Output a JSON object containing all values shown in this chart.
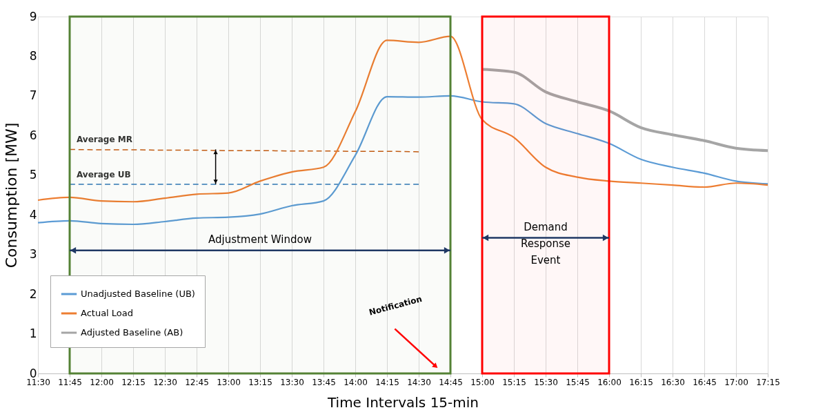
{
  "chart_data": {
    "type": "line",
    "xlabel": "Time Intervals 15-min",
    "ylabel": "Consumption [MW]",
    "x": [
      11.5,
      11.75,
      12.0,
      12.25,
      12.5,
      12.75,
      13.0,
      13.25,
      13.5,
      13.75,
      14.0,
      14.25,
      14.5,
      14.75,
      15.0,
      15.25,
      15.5,
      15.75,
      16.0,
      16.25,
      16.5,
      16.75,
      17.0,
      17.25
    ],
    "xlim": [
      11.5,
      17.25
    ],
    "xticks": [
      {
        "value": 11.5,
        "label": "11:30"
      },
      {
        "value": 11.75,
        "label": "11:45"
      },
      {
        "value": 12.0,
        "label": "12:00"
      },
      {
        "value": 12.25,
        "label": "12:15"
      },
      {
        "value": 12.5,
        "label": "12:30"
      },
      {
        "value": 12.75,
        "label": "12:45"
      },
      {
        "value": 13.0,
        "label": "13:00"
      },
      {
        "value": 13.25,
        "label": "13:15"
      },
      {
        "value": 13.5,
        "label": "13:30"
      },
      {
        "value": 13.75,
        "label": "13:45"
      },
      {
        "value": 14.0,
        "label": "14:00"
      },
      {
        "value": 14.25,
        "label": "14:15"
      },
      {
        "value": 14.5,
        "label": "14:30"
      },
      {
        "value": 14.75,
        "label": "14:45"
      },
      {
        "value": 15.0,
        "label": "15:00"
      },
      {
        "value": 15.25,
        "label": "15:15"
      },
      {
        "value": 15.5,
        "label": "15:30"
      },
      {
        "value": 15.75,
        "label": "15:45"
      },
      {
        "value": 16.0,
        "label": "16:00"
      },
      {
        "value": 16.25,
        "label": "16:15"
      },
      {
        "value": 16.5,
        "label": "16:30"
      },
      {
        "value": 16.75,
        "label": "16:45"
      },
      {
        "value": 17.0,
        "label": "17:00"
      },
      {
        "value": 17.25,
        "label": "17:15"
      }
    ],
    "ylim": [
      0,
      9
    ],
    "yticks": [
      0,
      1,
      2,
      3,
      4,
      5,
      6,
      7,
      8,
      9
    ],
    "grid": "x",
    "legend": "bottom left",
    "series": [
      {
        "name": "Unadjusted Baseline (UB)",
        "color": "#5b9bd5",
        "values": [
          3.8,
          3.85,
          3.78,
          3.76,
          3.83,
          3.92,
          3.94,
          4.02,
          4.23,
          4.35,
          5.5,
          6.98,
          6.97,
          7.0,
          6.85,
          6.8,
          6.3,
          6.05,
          5.8,
          5.4,
          5.2,
          5.05,
          4.85,
          4.78
        ]
      },
      {
        "name": "Actual Load",
        "color": "#ed7d31",
        "values": [
          4.37,
          4.44,
          4.35,
          4.33,
          4.42,
          4.52,
          4.55,
          4.85,
          5.08,
          5.2,
          6.6,
          8.4,
          8.35,
          8.5,
          6.4,
          5.95,
          5.2,
          4.95,
          4.85,
          4.8,
          4.75,
          4.7,
          4.8,
          4.75
        ]
      },
      {
        "name": "Adjusted Baseline (AB)",
        "color": "#a5a5a5",
        "values": [
          null,
          null,
          null,
          null,
          null,
          null,
          null,
          null,
          null,
          null,
          null,
          null,
          null,
          null,
          7.67,
          7.6,
          7.1,
          6.85,
          6.62,
          6.2,
          6.02,
          5.87,
          5.68,
          5.62
        ]
      },
      {
        "name": "Average MR",
        "color": "#c55a11",
        "line_style": "dashed",
        "values": [
          null,
          5.65,
          5.64,
          5.64,
          5.63,
          5.63,
          5.62,
          5.62,
          5.61,
          5.61,
          5.6,
          5.6,
          5.59,
          null,
          null,
          null,
          null,
          null,
          null,
          null,
          null,
          null,
          null,
          null
        ]
      },
      {
        "name": "Average UB",
        "color": "#2e75b6",
        "line_style": "dashed",
        "values": [
          null,
          4.77,
          4.77,
          4.77,
          4.77,
          4.77,
          4.77,
          4.77,
          4.77,
          4.77,
          4.77,
          4.77,
          4.77,
          null,
          null,
          null,
          null,
          null,
          null,
          null,
          null,
          null,
          null,
          null
        ]
      }
    ],
    "bands": [
      {
        "axis": "x",
        "from": 11.75,
        "to": 14.75,
        "label": "Adjustment Window",
        "color": "#548235"
      },
      {
        "axis": "x",
        "from": 15.0,
        "to": 16.0,
        "label": "Demand Response Event",
        "color": "#ff0000"
      }
    ],
    "annotations": [
      "Notification"
    ]
  }
}
